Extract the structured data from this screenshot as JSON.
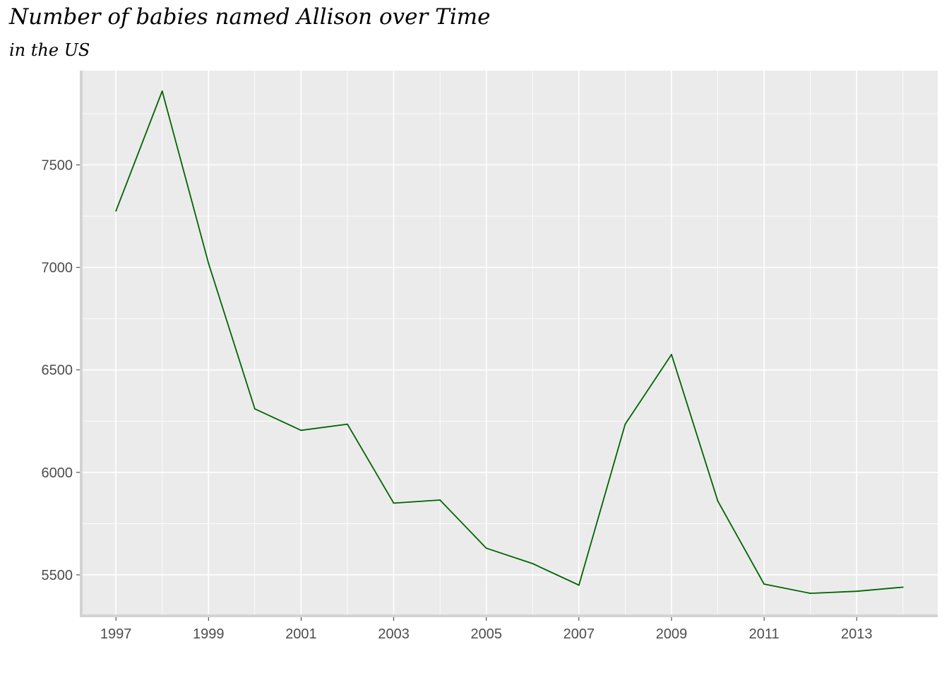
{
  "chart_data": {
    "type": "line",
    "title": "Number of babies named Allison over Time",
    "subtitle": "in the US",
    "xlabel": "",
    "ylabel": "",
    "x": [
      1997,
      1998,
      1999,
      2000,
      2001,
      2002,
      2003,
      2004,
      2005,
      2006,
      2007,
      2008,
      2009,
      2010,
      2011,
      2012,
      2013,
      2014
    ],
    "series": [
      {
        "values": [
          7275,
          7860,
          7020,
          6310,
          6205,
          6235,
          5850,
          5865,
          5630,
          5555,
          5450,
          6235,
          6575,
          5860,
          5455,
          5410,
          5420,
          5440
        ]
      }
    ],
    "xticks": [
      "1997",
      "1999",
      "2001",
      "2003",
      "2005",
      "2007",
      "2009",
      "2011",
      "2013"
    ],
    "yticks": [
      "5500",
      "6000",
      "6500",
      "7000",
      "7500"
    ],
    "xlim": [
      1996.25,
      2014.75
    ],
    "ylim": [
      5300,
      7960
    ],
    "grid": true,
    "legend": "none",
    "colors": {
      "line": "#006400",
      "panel": "#ebebeb",
      "grid_major": "#ffffff",
      "axis": "#d3d3d3",
      "tick_text": "#4d4d4d"
    }
  }
}
